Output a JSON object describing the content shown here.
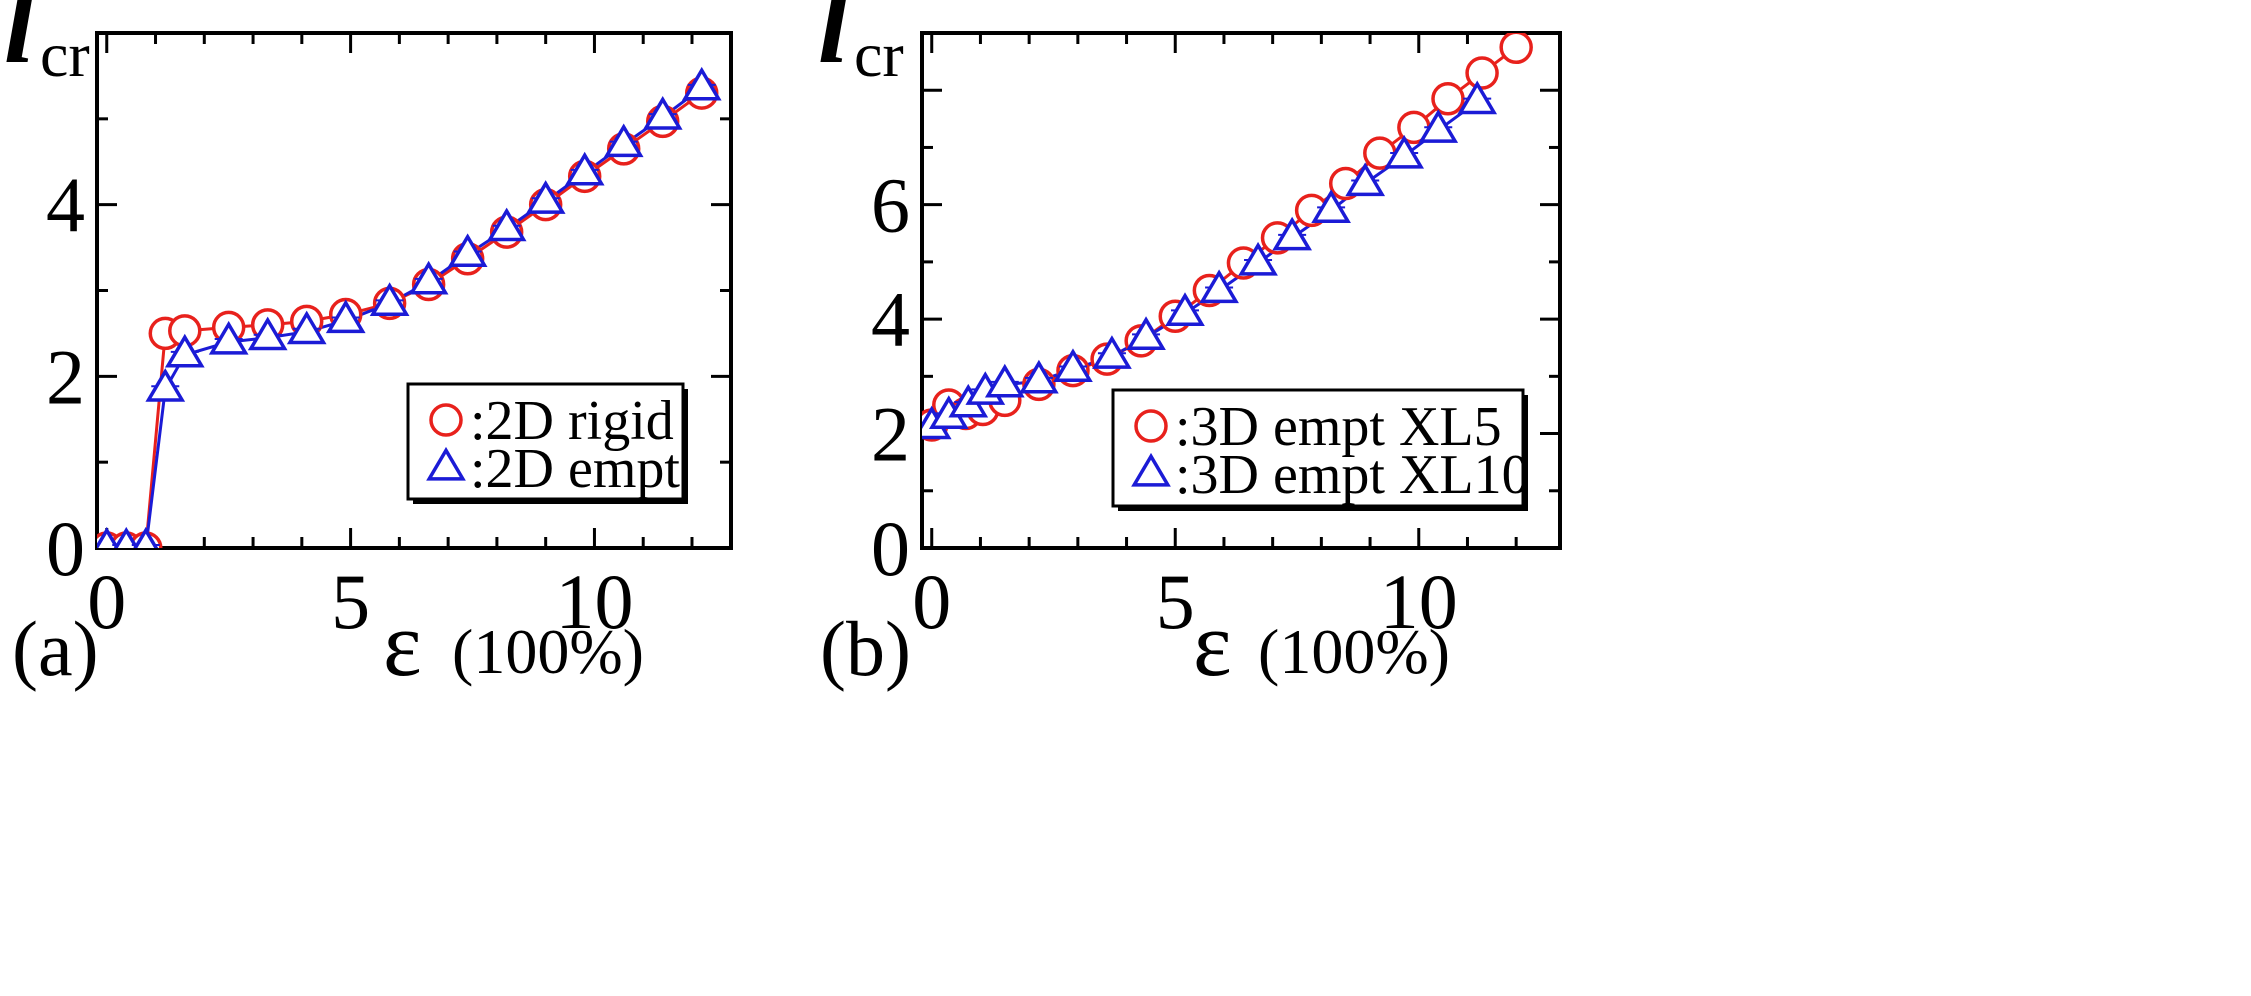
{
  "chart_data": [
    {
      "type": "line",
      "panel_label": "(a)",
      "ylabel_main": "l",
      "ylabel_sub": "cr",
      "xlabel_symbol": "ε",
      "xlabel_unit": "(100%)",
      "xlim": [
        -0.2,
        12.8
      ],
      "ylim": [
        0,
        6.0
      ],
      "xticks": [
        0,
        5,
        10
      ],
      "xtick_labels": [
        "0",
        "5",
        "10"
      ],
      "yticks": [
        0,
        2,
        4
      ],
      "ytick_labels": [
        "0",
        "2",
        "4"
      ],
      "legend_position": "bottom-right",
      "series": [
        {
          "name": ":2D rigid",
          "marker": "circle",
          "color": "#e8211c",
          "x": [
            0.0,
            0.4,
            0.8,
            1.2,
            1.6,
            2.5,
            3.3,
            4.1,
            4.9,
            5.8,
            6.6,
            7.4,
            8.2,
            9.0,
            9.8,
            10.6,
            11.4,
            12.2
          ],
          "y": [
            0.0,
            0.0,
            0.0,
            2.5,
            2.53,
            2.57,
            2.6,
            2.64,
            2.72,
            2.85,
            3.07,
            3.37,
            3.68,
            4.0,
            4.33,
            4.65,
            4.97,
            5.3
          ]
        },
        {
          "name": ":2D empt",
          "marker": "triangle",
          "color": "#1b1bd6",
          "x": [
            0.0,
            0.4,
            0.8,
            1.2,
            1.6,
            2.5,
            3.3,
            4.1,
            4.9,
            5.8,
            6.6,
            7.4,
            8.2,
            9.0,
            9.8,
            10.6,
            11.4,
            12.2
          ],
          "y": [
            0.0,
            0.0,
            0.0,
            1.85,
            2.25,
            2.4,
            2.45,
            2.52,
            2.65,
            2.85,
            3.1,
            3.42,
            3.72,
            4.04,
            4.37,
            4.7,
            5.02,
            5.36
          ]
        }
      ]
    },
    {
      "type": "line",
      "panel_label": "(b)",
      "ylabel_main": "l",
      "ylabel_sub": "cr",
      "xlabel_symbol": "ε",
      "xlabel_unit": "(100%)",
      "xlim": [
        -0.2,
        12.9
      ],
      "ylim": [
        0,
        9.0
      ],
      "xticks": [
        0,
        5,
        10
      ],
      "xtick_labels": [
        "0",
        "5",
        "10"
      ],
      "yticks": [
        0,
        2,
        4,
        6
      ],
      "ytick_labels": [
        "0",
        "2",
        "4",
        "6"
      ],
      "legend_position": "bottom-right",
      "series": [
        {
          "name": ":3D empt XL5",
          "marker": "circle",
          "color": "#e8211c",
          "x": [
            0.0,
            0.35,
            0.7,
            1.05,
            1.5,
            2.2,
            2.9,
            3.6,
            4.3,
            5.0,
            5.7,
            6.4,
            7.1,
            7.8,
            8.5,
            9.2,
            9.9,
            10.6,
            11.3,
            12.0
          ],
          "y": [
            2.15,
            2.5,
            2.35,
            2.42,
            2.58,
            2.86,
            3.1,
            3.3,
            3.62,
            4.05,
            4.5,
            4.98,
            5.42,
            5.9,
            6.37,
            6.9,
            7.35,
            7.85,
            8.3,
            8.75
          ]
        },
        {
          "name": ":3D empt XL10",
          "marker": "triangle",
          "color": "#1b1bd6",
          "x": [
            0.0,
            0.35,
            0.75,
            1.1,
            1.5,
            2.2,
            2.9,
            3.7,
            4.4,
            5.2,
            5.9,
            6.7,
            7.4,
            8.2,
            8.9,
            9.7,
            10.4,
            11.2
          ],
          "y": [
            2.12,
            2.3,
            2.5,
            2.72,
            2.85,
            2.92,
            3.12,
            3.35,
            3.68,
            4.1,
            4.5,
            4.98,
            5.42,
            5.9,
            6.37,
            6.85,
            7.3,
            7.8
          ]
        }
      ]
    }
  ]
}
